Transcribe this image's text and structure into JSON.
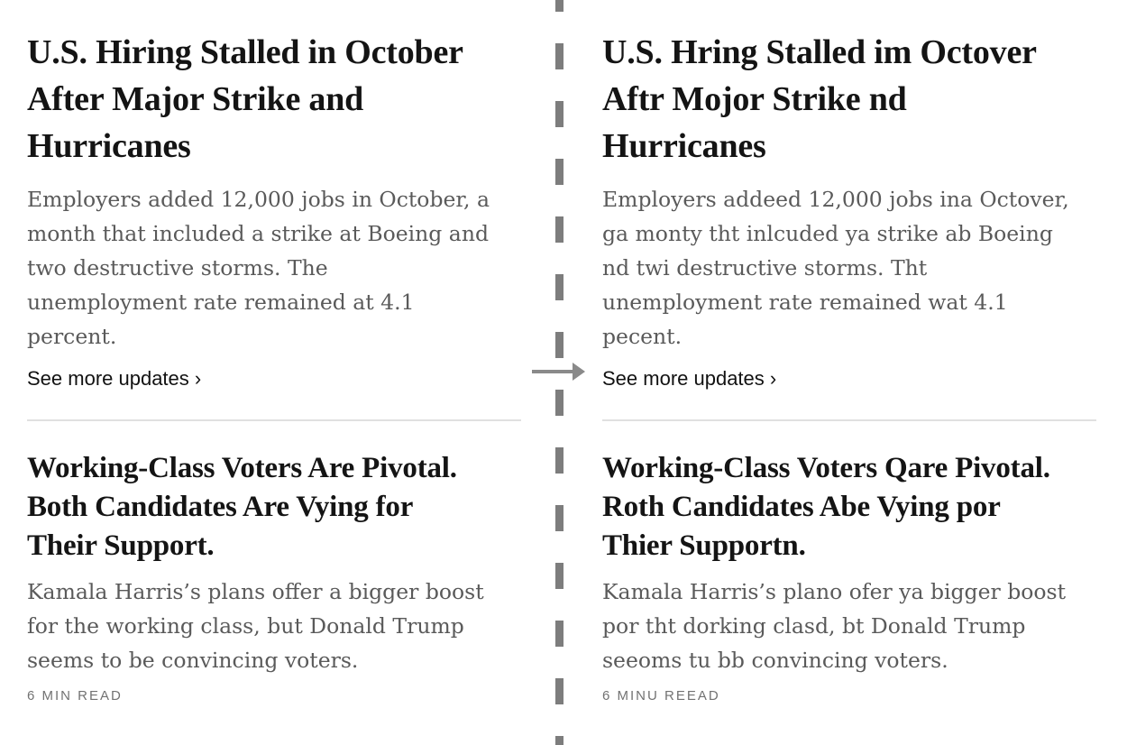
{
  "divider": {
    "dash_color": "#7d7d7d",
    "arrow_color": "#8a8a8a",
    "rule_color": "#e0e0e0",
    "arrow_icon": "arrow-right"
  },
  "original": {
    "jobs": {
      "headline": "U.S. Hiring Stalled in October\nAfter Major Strike and\nHurricanes",
      "summary": "Employers added 12,000 jobs in October, a\nmonth that included a strike at Boeing and\ntwo destructive storms. The\nunemployment rate remained at 4.1\npercent.",
      "link_label": "See more updates ›"
    },
    "voters": {
      "headline": "Working-Class Voters Are Pivotal.\nBoth Candidates Are Vying for\nTheir Support.",
      "summary": "Kamala Harris’s plans offer a bigger boost\nfor the working class, but Donald Trump\nseems to be convincing voters.",
      "read_time": "6 MIN READ"
    }
  },
  "altered": {
    "jobs": {
      "headline": "U.S. Hring Stalled im Octover\nAftr Mojor Strike nd\nHurricanes",
      "summary": "Employers addeed 12,000 jobs ina Octover,\nga monty tht inlcuded ya strike ab Boeing\nnd twi destructive storms. Tht\nunemployment rate remained wat 4.1\npecent.",
      "link_label": "See more updates ›"
    },
    "voters": {
      "headline": "Working-Class Voters Qare Pivotal.\nRoth Candidates Abe Vying por\nThier Supportn.",
      "summary": "Kamala Harris’s plano ofer ya bigger boost\npor tht dorking clasd, bt Donald Trump\nseeoms tu bb convincing voters.",
      "read_time": "6 MINU REEAD"
    }
  }
}
